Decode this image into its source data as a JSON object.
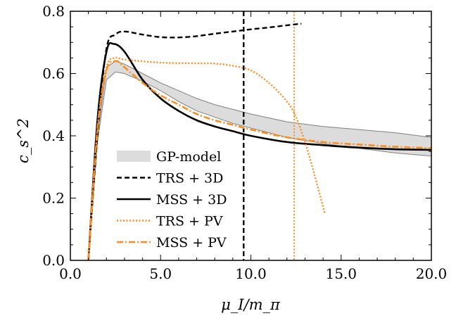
{
  "chart_data": {
    "type": "line",
    "xlabel": "μ_I/m_π",
    "ylabel": "c_s^2",
    "xlim": [
      0,
      20
    ],
    "ylim": [
      0,
      0.8
    ],
    "x_ticks": [
      "0.0",
      "5.0",
      "10.0",
      "15.0",
      "20.0"
    ],
    "y_ticks": [
      "0.0",
      "0.2",
      "0.4",
      "0.6",
      "0.8"
    ],
    "grid": false,
    "legend_position": "lower-left",
    "band": {
      "name": "GP-model",
      "color": "#dcdcdc",
      "edge_color": "#808080",
      "upper": [
        [
          1,
          0
        ],
        [
          1.5,
          0.4
        ],
        [
          2,
          0.62
        ],
        [
          2.5,
          0.64
        ],
        [
          3,
          0.63
        ],
        [
          4,
          0.6
        ],
        [
          5,
          0.57
        ],
        [
          6,
          0.545
        ],
        [
          7,
          0.52
        ],
        [
          8,
          0.5
        ],
        [
          9,
          0.485
        ],
        [
          10,
          0.47
        ],
        [
          12,
          0.445
        ],
        [
          14,
          0.43
        ],
        [
          16,
          0.42
        ],
        [
          18,
          0.41
        ],
        [
          20,
          0.395
        ]
      ],
      "lower": [
        [
          1,
          0
        ],
        [
          1.5,
          0.38
        ],
        [
          2,
          0.58
        ],
        [
          2.5,
          0.605
        ],
        [
          3,
          0.6
        ],
        [
          4,
          0.575
        ],
        [
          5,
          0.545
        ],
        [
          6,
          0.51
        ],
        [
          7,
          0.48
        ],
        [
          8,
          0.46
        ],
        [
          9,
          0.44
        ],
        [
          10,
          0.425
        ],
        [
          12,
          0.395
        ],
        [
          14,
          0.375
        ],
        [
          16,
          0.36
        ],
        [
          18,
          0.345
        ],
        [
          20,
          0.335
        ]
      ]
    },
    "series": [
      {
        "name": "TRS + 3D",
        "color": "#000000",
        "style": "dashed",
        "points": [
          [
            1,
            0
          ],
          [
            1.5,
            0.4
          ],
          [
            2,
            0.68
          ],
          [
            2.5,
            0.725
          ],
          [
            3,
            0.735
          ],
          [
            4,
            0.725
          ],
          [
            5,
            0.717
          ],
          [
            6,
            0.716
          ],
          [
            7,
            0.72
          ],
          [
            8,
            0.728
          ],
          [
            9,
            0.735
          ],
          [
            10,
            0.742
          ],
          [
            11,
            0.748
          ],
          [
            12,
            0.755
          ],
          [
            12.8,
            0.76
          ]
        ]
      },
      {
        "name": "MSS + 3D",
        "color": "#000000",
        "style": "solid",
        "points": [
          [
            1,
            0
          ],
          [
            1.5,
            0.45
          ],
          [
            2,
            0.67
          ],
          [
            2.4,
            0.695
          ],
          [
            3,
            0.67
          ],
          [
            4,
            0.58
          ],
          [
            5,
            0.52
          ],
          [
            6,
            0.48
          ],
          [
            7,
            0.45
          ],
          [
            8,
            0.43
          ],
          [
            9,
            0.415
          ],
          [
            10,
            0.4
          ],
          [
            12,
            0.38
          ],
          [
            14,
            0.37
          ],
          [
            16,
            0.362
          ],
          [
            18,
            0.357
          ],
          [
            20,
            0.355
          ]
        ]
      },
      {
        "name": "TRS + PV",
        "color": "#ff8c1a",
        "style": "dotted",
        "points": [
          [
            1,
            0
          ],
          [
            1.5,
            0.42
          ],
          [
            2,
            0.62
          ],
          [
            2.5,
            0.65
          ],
          [
            3,
            0.645
          ],
          [
            5,
            0.635
          ],
          [
            7,
            0.633
          ],
          [
            8,
            0.632
          ],
          [
            9,
            0.625
          ],
          [
            10,
            0.61
          ],
          [
            11,
            0.57
          ],
          [
            12,
            0.51
          ],
          [
            12.5,
            0.46
          ],
          [
            13,
            0.38
          ],
          [
            13.5,
            0.28
          ],
          [
            14.1,
            0.15
          ]
        ]
      },
      {
        "name": "MSS + PV",
        "color": "#ff8c1a",
        "style": "dashdot",
        "points": [
          [
            1,
            0
          ],
          [
            1.5,
            0.42
          ],
          [
            2,
            0.61
          ],
          [
            2.5,
            0.64
          ],
          [
            3,
            0.62
          ],
          [
            4,
            0.57
          ],
          [
            5,
            0.53
          ],
          [
            6,
            0.5
          ],
          [
            7,
            0.47
          ],
          [
            8,
            0.45
          ],
          [
            9,
            0.435
          ],
          [
            10,
            0.42
          ],
          [
            12,
            0.395
          ],
          [
            14,
            0.38
          ],
          [
            16,
            0.372
          ],
          [
            18,
            0.365
          ],
          [
            20,
            0.36
          ]
        ]
      }
    ],
    "vlines": [
      {
        "x": 9.6,
        "color": "#000000",
        "style": "dashed"
      },
      {
        "x": 12.4,
        "color": "#ff8c1a",
        "style": "dotted"
      }
    ]
  }
}
